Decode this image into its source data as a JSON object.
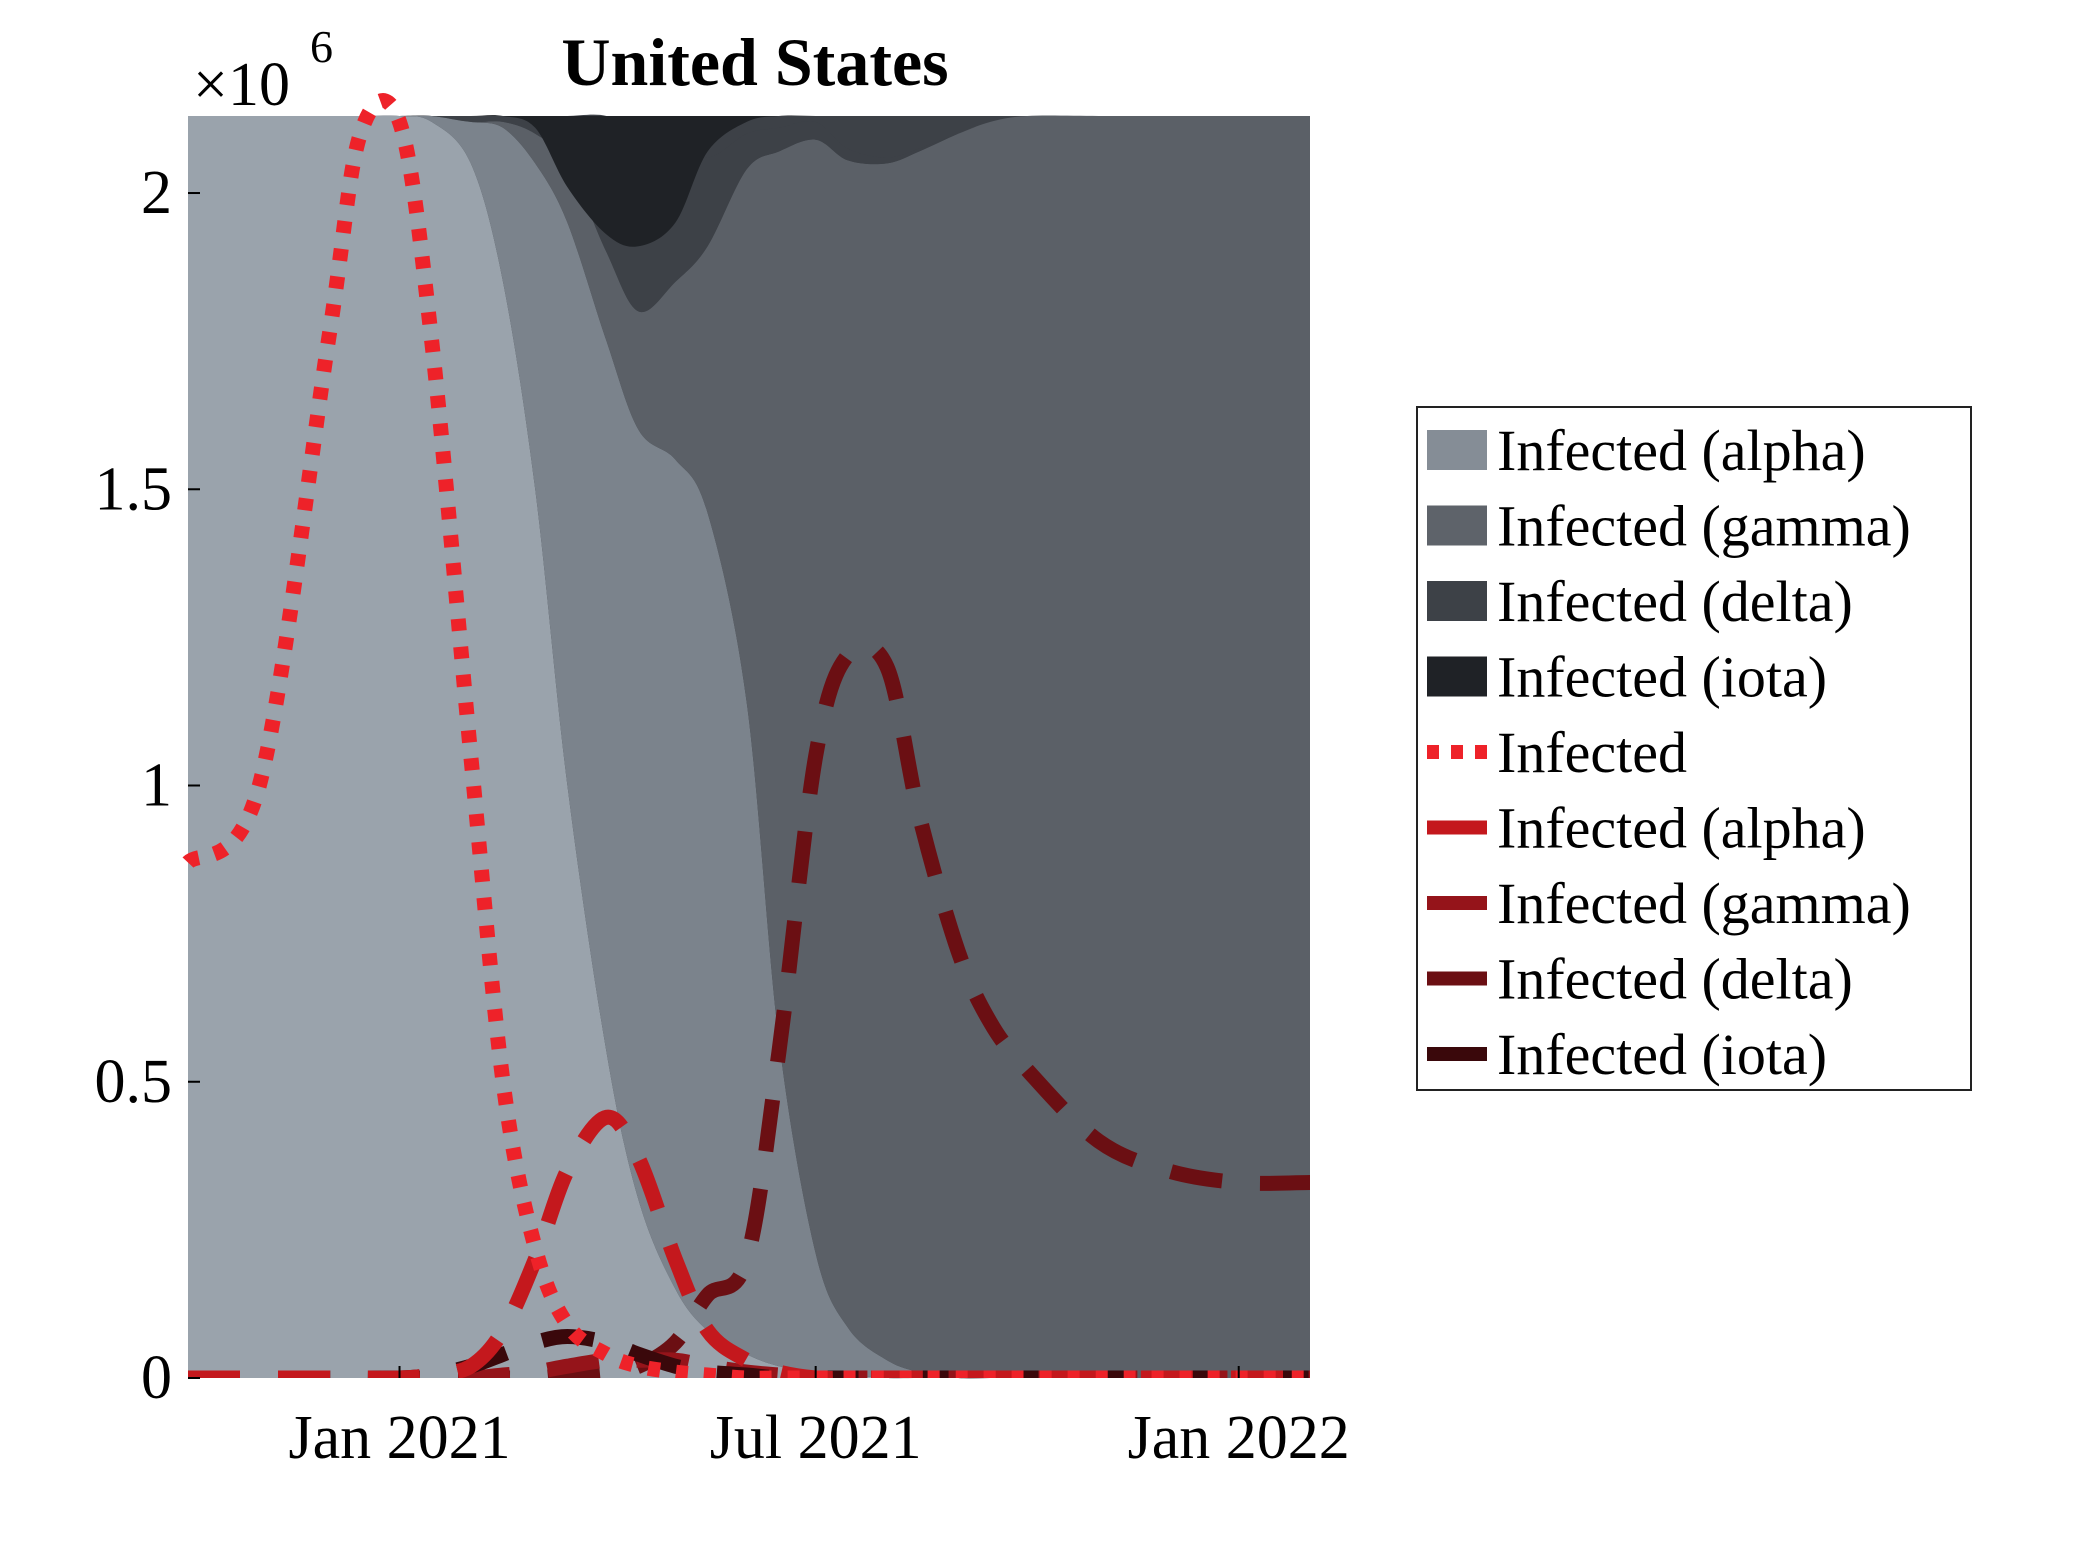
{
  "chart_data": {
    "type": "area",
    "title": "United States",
    "xlabel": "",
    "ylabel": "",
    "y_exponent_label": "×10",
    "y_exponent_power": "6",
    "y_scale": 1000000,
    "ylim": [
      0,
      2.13
    ],
    "xlim": [
      "2020-10-01",
      "2022-02-01"
    ],
    "x_ticks": [
      {
        "date": "2021-01-01",
        "label": "Jan 2021"
      },
      {
        "date": "2021-07-01",
        "label": "Jul 2021"
      },
      {
        "date": "2022-01-01",
        "label": "Jan 2022"
      }
    ],
    "y_ticks": [
      {
        "value": 0,
        "label": "0"
      },
      {
        "value": 0.5,
        "label": "0.5"
      },
      {
        "value": 1,
        "label": "1"
      },
      {
        "value": 1.5,
        "label": "1.5"
      },
      {
        "value": 2,
        "label": "2"
      }
    ],
    "x": [
      "2020-10-01",
      "2020-11-01",
      "2020-12-01",
      "2020-12-15",
      "2021-01-01",
      "2021-01-15",
      "2021-02-01",
      "2021-02-15",
      "2021-03-01",
      "2021-03-15",
      "2021-04-01",
      "2021-04-15",
      "2021-05-01",
      "2021-05-15",
      "2021-06-01",
      "2021-06-15",
      "2021-07-01",
      "2021-07-15",
      "2021-08-01",
      "2021-08-15",
      "2021-09-01",
      "2021-09-15",
      "2021-10-01",
      "2021-11-01",
      "2021-12-01",
      "2022-01-01",
      "2022-02-01"
    ],
    "stacked_areas": [
      {
        "name": "Infected (alpha)",
        "color": "#9aa3ac",
        "values": [
          2.13,
          2.13,
          2.13,
          2.13,
          2.13,
          2.12,
          2.05,
          1.85,
          1.5,
          1.0,
          0.55,
          0.3,
          0.15,
          0.08,
          0.04,
          0.02,
          0.01,
          0.005,
          0,
          0,
          0,
          0,
          0,
          0,
          0,
          0,
          0
        ]
      },
      {
        "name": "Infected (gamma)",
        "color": "#7b838c",
        "values": [
          0,
          0,
          0,
          0,
          0,
          0.01,
          0.07,
          0.26,
          0.55,
          0.95,
          1.2,
          1.3,
          1.4,
          1.38,
          1.1,
          0.55,
          0.2,
          0.08,
          0.03,
          0.01,
          0,
          0,
          0,
          0,
          0,
          0,
          0
        ]
      },
      {
        "name": "Infected (delta)",
        "color": "#5b6067",
        "values": [
          0,
          0,
          0,
          0,
          0,
          0,
          0,
          0.01,
          0.05,
          0.1,
          0.15,
          0.2,
          0.3,
          0.45,
          0.9,
          1.5,
          1.88,
          1.97,
          2.02,
          2.06,
          2.1,
          2.12,
          2.13,
          2.13,
          2.13,
          2.13,
          2.13
        ]
      },
      {
        "name": "Infected (iota)",
        "color": "#3d4147",
        "values": [
          0,
          0,
          0,
          0,
          0,
          0,
          0.01,
          0.01,
          0.03,
          0.08,
          0.23,
          0.3,
          0.25,
          0.15,
          0.06,
          0.04,
          0.03,
          0.02,
          0.01,
          0.005,
          0,
          0,
          0,
          0,
          0,
          0,
          0
        ]
      }
    ],
    "top_band": {
      "name": "Infected (iota)",
      "color": "#1f2226",
      "values": [
        0,
        0,
        0,
        0,
        0,
        0,
        0,
        0,
        0.02,
        0.12,
        0.2,
        0.22,
        0.18,
        0.06,
        0.01,
        0,
        0,
        0,
        0,
        0,
        0,
        0,
        0,
        0,
        0,
        0,
        0
      ]
    },
    "lines": [
      {
        "name": "Infected",
        "color": "#ee2229",
        "style": "dotted",
        "values": [
          0.87,
          1.0,
          1.75,
          2.1,
          2.12,
          1.75,
          1.05,
          0.5,
          0.22,
          0.09,
          0.04,
          0.02,
          0.01,
          0.005,
          0,
          0,
          0,
          0,
          0,
          0,
          0,
          0,
          0,
          0,
          0,
          0,
          0
        ]
      },
      {
        "name": "Infected (alpha)",
        "color": "#c4181d",
        "style": "dashed",
        "values": [
          0,
          0,
          0,
          0,
          0,
          0.005,
          0.02,
          0.08,
          0.2,
          0.35,
          0.44,
          0.37,
          0.2,
          0.08,
          0.03,
          0.01,
          0,
          0,
          0,
          0,
          0,
          0,
          0,
          0,
          0,
          0,
          0
        ]
      },
      {
        "name": "Infected (gamma)",
        "color": "#95141a",
        "style": "dashed",
        "values": [
          0,
          0,
          0,
          0,
          0,
          0,
          0,
          0.005,
          0.01,
          0.02,
          0.03,
          0.03,
          0.03,
          0.02,
          0.01,
          0.005,
          0,
          0,
          0,
          0,
          0,
          0,
          0,
          0,
          0,
          0,
          0
        ]
      },
      {
        "name": "Infected (delta)",
        "color": "#6b0f13",
        "style": "dashed",
        "values": [
          0,
          0,
          0,
          0,
          0,
          0,
          0,
          0,
          0,
          0.005,
          0.01,
          0.02,
          0.06,
          0.14,
          0.2,
          0.55,
          1.05,
          1.22,
          1.2,
          0.95,
          0.72,
          0.6,
          0.52,
          0.4,
          0.35,
          0.33,
          0.33
        ]
      },
      {
        "name": "Infected (iota)",
        "color": "#3a080b",
        "style": "dashed",
        "values": [
          0,
          0,
          0,
          0,
          0,
          0.005,
          0.02,
          0.04,
          0.06,
          0.07,
          0.06,
          0.04,
          0.02,
          0.01,
          0.005,
          0,
          0,
          0,
          0,
          0,
          0,
          0,
          0,
          0,
          0,
          0,
          0
        ]
      }
    ],
    "legend": {
      "placement": "right",
      "entries": [
        {
          "label": "Infected (alpha)",
          "color": "#858d96",
          "kind": "patch"
        },
        {
          "label": "Infected (gamma)",
          "color": "#5e636a",
          "kind": "patch"
        },
        {
          "label": "Infected (delta)",
          "color": "#3d4147",
          "kind": "patch"
        },
        {
          "label": "Infected (iota)",
          "color": "#1f2226",
          "kind": "patch"
        },
        {
          "label": "Infected",
          "color": "#ee2229",
          "kind": "dotted"
        },
        {
          "label": "Infected (alpha)",
          "color": "#c4181d",
          "kind": "line"
        },
        {
          "label": "Infected (gamma)",
          "color": "#95141a",
          "kind": "line"
        },
        {
          "label": "Infected (delta)",
          "color": "#6b0f13",
          "kind": "line"
        },
        {
          "label": "Infected (iota)",
          "color": "#3a080b",
          "kind": "line"
        }
      ]
    },
    "grid": false
  }
}
